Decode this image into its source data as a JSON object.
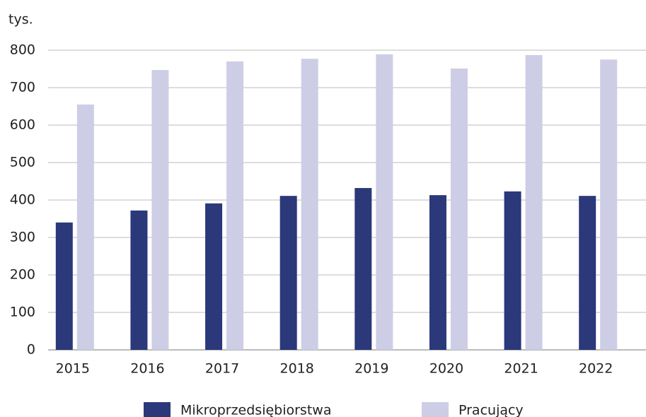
{
  "chart_data": {
    "type": "bar",
    "y_unit_label": "tys.",
    "categories": [
      "2015",
      "2016",
      "2017",
      "2018",
      "2019",
      "2020",
      "2021",
      "2022"
    ],
    "series": [
      {
        "name": "Mikroprzedsiębiorstwa",
        "color": "#2b3879",
        "values": [
          340,
          372,
          391,
          411,
          432,
          413,
          423,
          411
        ]
      },
      {
        "name": "Pracujący",
        "color": "#cdcde6",
        "values": [
          655,
          747,
          770,
          777,
          789,
          751,
          787,
          775
        ]
      }
    ],
    "ylim": [
      0,
      800
    ],
    "yticks": [
      0,
      100,
      200,
      300,
      400,
      500,
      600,
      700,
      800
    ],
    "grid": true,
    "legend": "bottom"
  }
}
